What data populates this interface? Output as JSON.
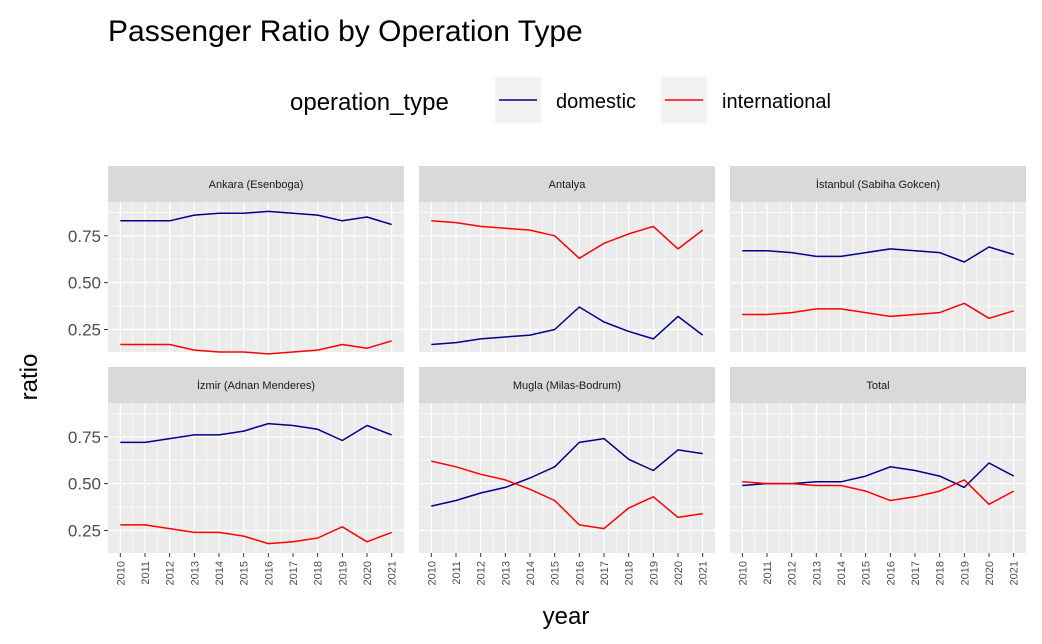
{
  "chart_data": {
    "type": "line",
    "title": "Passenger Ratio by Operation Type",
    "xlabel": "year",
    "ylabel": "ratio",
    "legend": {
      "title": "operation_type",
      "placement": "top",
      "entries": [
        {
          "name": "domestic",
          "color": "#00008B"
        },
        {
          "name": "international",
          "color": "#FF0000"
        }
      ]
    },
    "x": [
      2010,
      2011,
      2012,
      2013,
      2014,
      2015,
      2016,
      2017,
      2018,
      2019,
      2020,
      2021
    ],
    "x_tick_labels": [
      "2010",
      "2011",
      "2012",
      "2013",
      "2014",
      "2015",
      "2016",
      "2017",
      "2018",
      "2019",
      "2020",
      "2021"
    ],
    "xlim": [
      2009.5,
      2021.5
    ],
    "ylim": [
      0.13,
      0.93
    ],
    "y_ticks": [
      0.25,
      0.5,
      0.75
    ],
    "y_tick_labels": [
      "0.25",
      "0.50",
      "0.75"
    ],
    "grid": true,
    "panel_background": "#EBEBEB",
    "strip_background": "#D9D9D9",
    "facets": [
      {
        "label": "Ankara (Esenboga)",
        "series": [
          {
            "name": "domestic",
            "values": [
              0.83,
              0.83,
              0.83,
              0.86,
              0.87,
              0.87,
              0.88,
              0.87,
              0.86,
              0.83,
              0.85,
              0.81
            ]
          },
          {
            "name": "international",
            "values": [
              0.17,
              0.17,
              0.17,
              0.14,
              0.13,
              0.13,
              0.12,
              0.13,
              0.14,
              0.17,
              0.15,
              0.19
            ]
          }
        ]
      },
      {
        "label": "Antalya",
        "series": [
          {
            "name": "domestic",
            "values": [
              0.17,
              0.18,
              0.2,
              0.21,
              0.22,
              0.25,
              0.37,
              0.29,
              0.24,
              0.2,
              0.32,
              0.22
            ]
          },
          {
            "name": "international",
            "values": [
              0.83,
              0.82,
              0.8,
              0.79,
              0.78,
              0.75,
              0.63,
              0.71,
              0.76,
              0.8,
              0.68,
              0.78
            ]
          }
        ]
      },
      {
        "label": "İstanbul (Sabiha Gokcen)",
        "series": [
          {
            "name": "domestic",
            "values": [
              0.67,
              0.67,
              0.66,
              0.64,
              0.64,
              0.66,
              0.68,
              0.67,
              0.66,
              0.61,
              0.69,
              0.65
            ]
          },
          {
            "name": "international",
            "values": [
              0.33,
              0.33,
              0.34,
              0.36,
              0.36,
              0.34,
              0.32,
              0.33,
              0.34,
              0.39,
              0.31,
              0.35
            ]
          }
        ]
      },
      {
        "label": "İzmir (Adnan Menderes)",
        "series": [
          {
            "name": "domestic",
            "values": [
              0.72,
              0.72,
              0.74,
              0.76,
              0.76,
              0.78,
              0.82,
              0.81,
              0.79,
              0.73,
              0.81,
              0.76
            ]
          },
          {
            "name": "international",
            "values": [
              0.28,
              0.28,
              0.26,
              0.24,
              0.24,
              0.22,
              0.18,
              0.19,
              0.21,
              0.27,
              0.19,
              0.24
            ]
          }
        ]
      },
      {
        "label": "Mugla (Milas-Bodrum)",
        "series": [
          {
            "name": "domestic",
            "values": [
              0.38,
              0.41,
              0.45,
              0.48,
              0.53,
              0.59,
              0.72,
              0.74,
              0.63,
              0.57,
              0.68,
              0.66
            ]
          },
          {
            "name": "international",
            "values": [
              0.62,
              0.59,
              0.55,
              0.52,
              0.47,
              0.41,
              0.28,
              0.26,
              0.37,
              0.43,
              0.32,
              0.34
            ]
          }
        ]
      },
      {
        "label": "Total",
        "series": [
          {
            "name": "domestic",
            "values": [
              0.49,
              0.5,
              0.5,
              0.51,
              0.51,
              0.54,
              0.59,
              0.57,
              0.54,
              0.48,
              0.61,
              0.54
            ]
          },
          {
            "name": "international",
            "values": [
              0.51,
              0.5,
              0.5,
              0.49,
              0.49,
              0.46,
              0.41,
              0.43,
              0.46,
              0.52,
              0.39,
              0.46
            ]
          }
        ]
      }
    ]
  }
}
